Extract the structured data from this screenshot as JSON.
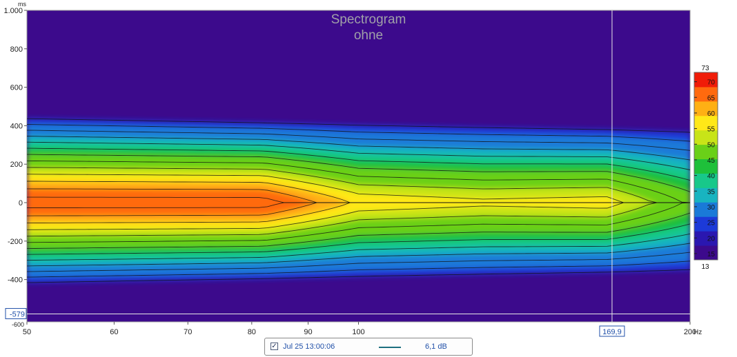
{
  "chart_data": {
    "type": "heatmap",
    "title": "Spectrogram",
    "subtitle": "ohne",
    "ylabel_unit": "ms",
    "xlabel_unit": "Hz",
    "x_scale": "log",
    "xlim": [
      50,
      200
    ],
    "ylim": [
      -620,
      1000
    ],
    "x_ticks": [
      50,
      60,
      70,
      80,
      90,
      100,
      200
    ],
    "x_tick_labels": [
      "50",
      "60",
      "70",
      "80",
      "90",
      "100",
      "200"
    ],
    "y_ticks": [
      1000,
      800,
      600,
      400,
      200,
      0,
      -200,
      -400
    ],
    "y_tick_labels": [
      "1.000",
      "800",
      "600",
      "400",
      "200",
      "0",
      "-200",
      "-400"
    ],
    "y_bottom_clipped_label": "-600",
    "y_cursor": -579,
    "y_cursor_label": "-579",
    "x_cursor": 169.9,
    "x_cursor_label": "169,9",
    "colorbar": {
      "min": 13,
      "max": 73,
      "min_label": "13",
      "max_label": "73",
      "ticks": [
        70,
        65,
        60,
        55,
        50,
        45,
        40,
        35,
        30,
        25,
        20,
        15
      ],
      "colors": [
        "#3c0a8c",
        "#2a17b0",
        "#1c3ad8",
        "#1a7ad8",
        "#18b4c0",
        "#18c88a",
        "#1ec03a",
        "#6ad018",
        "#c8e418",
        "#ffe818",
        "#ffb014",
        "#ff6a0e",
        "#f01c08"
      ]
    },
    "ridge_peaks_dB": [
      {
        "freq_hz": 55,
        "peak_db": 70
      },
      {
        "freq_hz": 64,
        "peak_db": 70
      },
      {
        "freq_hz": 82,
        "peak_db": 70
      },
      {
        "freq_hz": 100,
        "peak_db": 59
      },
      {
        "freq_hz": 130,
        "peak_db": 57
      },
      {
        "freq_hz": 168,
        "peak_db": 58
      },
      {
        "freq_hz": 200,
        "peak_db": 47
      }
    ],
    "series": [
      {
        "name": "Jul 25 13:00:06",
        "value_label": "6,1 dB",
        "color": "#1c6f7f"
      }
    ],
    "grid": false,
    "legend_position": "bottom-center"
  }
}
